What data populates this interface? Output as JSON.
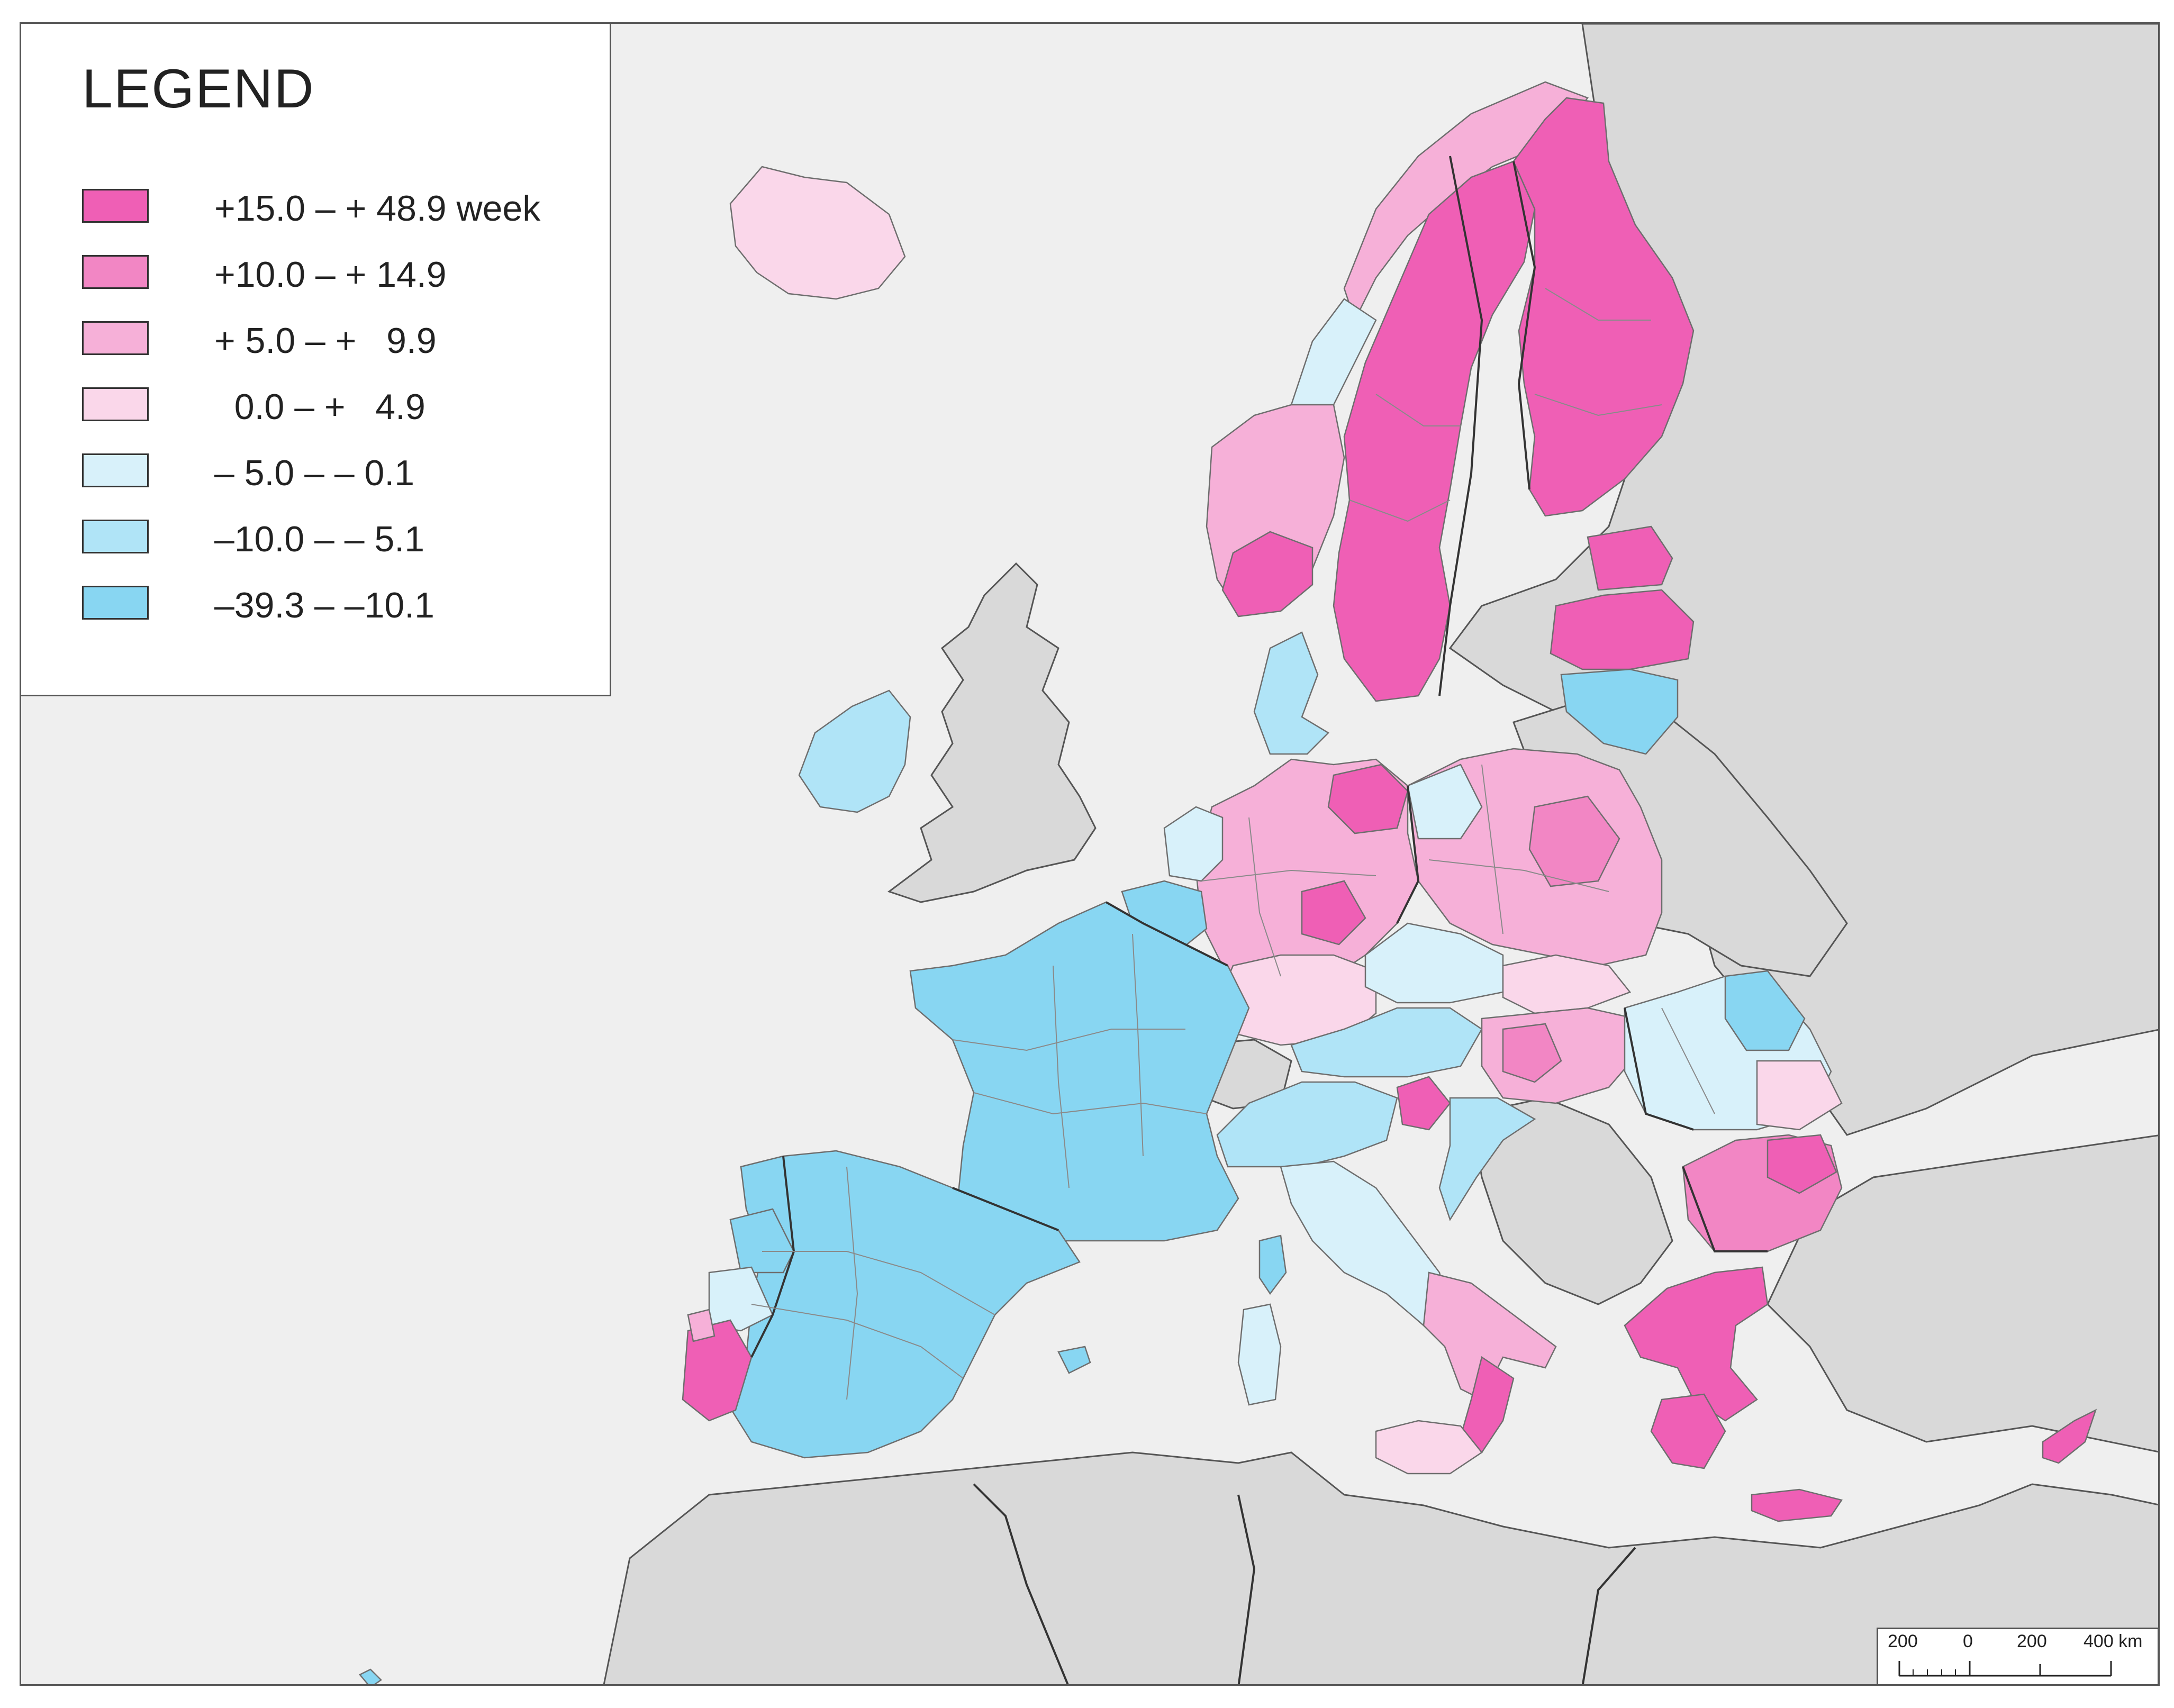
{
  "legend": {
    "title": "LEGEND",
    "classes": [
      {
        "label": "+15.0 – + 48.9 week",
        "color": "#ef5fb5"
      },
      {
        "label": "+10.0 – + 14.9",
        "color": "#f286c4"
      },
      {
        "label": "+ 5.0 – +   9.9",
        "color": "#f6b0d8"
      },
      {
        "label": "  0.0 – +   4.9",
        "color": "#fad7ea"
      },
      {
        "label": "– 5.0 – – 0.1",
        "color": "#d8f1fa"
      },
      {
        "label": "–10.0 – – 5.1",
        "color": "#b0e4f7"
      },
      {
        "label": "–39.3 – –10.1",
        "color": "#88d6f2"
      }
    ]
  },
  "scale_bar": {
    "ticks": [
      "200",
      "0",
      "200",
      "400 km"
    ]
  },
  "colors": {
    "sea": "#efefef",
    "non_eu_land": "#d9d9d9",
    "border": "#333333"
  }
}
